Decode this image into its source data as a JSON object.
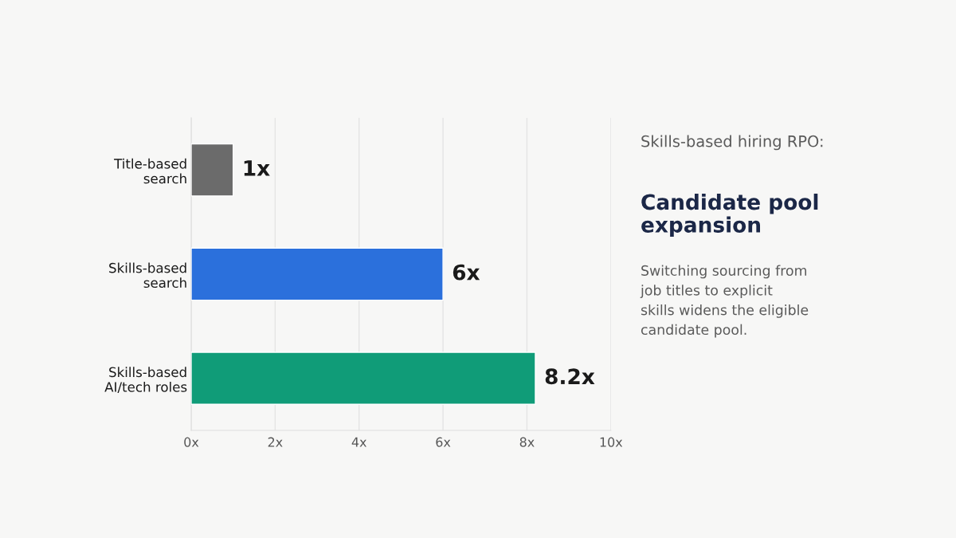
{
  "chart_data": {
    "type": "bar",
    "orientation": "horizontal",
    "title": "Candidate pool\nexpansion",
    "subtitle": "Skills-based hiring RPO:",
    "annotations": [
      "Switching sourcing from\njob titles to explicit\nskills widens the eligible\ncandidate pool."
    ],
    "categories": [
      "Title-based\nsearch",
      "Skills-based\nsearch",
      "Skills-based\nAI/tech roles"
    ],
    "values": [
      1,
      6,
      8.2
    ],
    "colors": [
      "#6b6b6b",
      "#2b70dc",
      "#109c78"
    ],
    "value_labels": [
      "1x",
      "6x",
      "8.2x"
    ],
    "xlim": [
      0,
      10
    ],
    "xticks": [
      {
        "value": 0,
        "label": "0x"
      },
      {
        "value": 2,
        "label": "2x"
      },
      {
        "value": 4,
        "label": "4x"
      },
      {
        "value": 6,
        "label": "6x"
      },
      {
        "value": 8,
        "label": "8x"
      },
      {
        "value": 10,
        "label": "10x"
      }
    ],
    "grid": "x",
    "legend": false
  }
}
